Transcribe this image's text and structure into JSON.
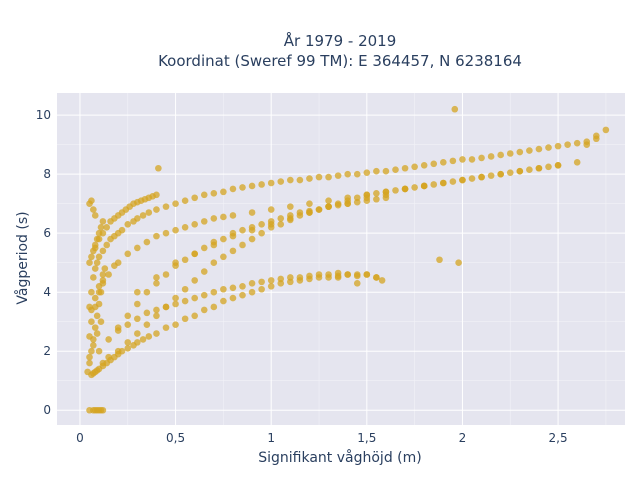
{
  "chart_data": {
    "type": "scatter",
    "title_lines": [
      "År 1979 - 2019",
      "Koordinat (Sweref 99 TM): E 364457, N 6238164"
    ],
    "xlabel": "Signifikant våghöjd (m)",
    "ylabel": "Vågperiod (s)",
    "xlim": [
      -0.12,
      2.85
    ],
    "ylim": [
      -0.5,
      10.75
    ],
    "xticks": [
      0,
      0.5,
      1,
      1.5,
      2,
      2.5
    ],
    "xtick_labels": [
      "0",
      "0,5",
      "1",
      "1,5",
      "2",
      "2,5"
    ],
    "yticks": [
      0,
      2,
      4,
      6,
      8,
      10
    ],
    "ytick_labels": [
      "0",
      "2",
      "4",
      "6",
      "8",
      "10"
    ],
    "grid": true,
    "marker_color": "#d4a421",
    "plot_background": "#e5e5ef",
    "series": [
      {
        "x": [
          0.05,
          0.07,
          0.09,
          0.11,
          0.12,
          0.08,
          0.1,
          0.06,
          0.07,
          0.08,
          0.09,
          0.1,
          0.12,
          0.14,
          0.16,
          0.18,
          0.2,
          0.22,
          0.25,
          0.28,
          0.3,
          0.33,
          0.36,
          0.4,
          0.45,
          0.5,
          0.55,
          0.6,
          0.65,
          0.7,
          0.75,
          0.8,
          0.85,
          0.9,
          0.95,
          1.0,
          1.05,
          1.1,
          1.15,
          1.2,
          1.25,
          1.3,
          1.35,
          1.4,
          1.45,
          1.5,
          0.05,
          0.06,
          0.07,
          0.08,
          0.09,
          0.1,
          0.12,
          0.14,
          0.16,
          0.18,
          0.2,
          0.22,
          0.25,
          0.28,
          0.3,
          0.33,
          0.36,
          0.4,
          0.45,
          0.5,
          0.55,
          0.6,
          0.65,
          0.7,
          0.75,
          0.8,
          0.85,
          0.9,
          0.95,
          1.0,
          1.05,
          1.1,
          1.15,
          1.2,
          1.25,
          1.3,
          1.35,
          1.4,
          1.45,
          1.5,
          1.55,
          1.6,
          1.65,
          1.7,
          1.75,
          1.8,
          1.85,
          1.9,
          1.95,
          2.0,
          2.05,
          2.1,
          2.15,
          2.2,
          2.25,
          2.3,
          2.35,
          2.4,
          2.45,
          2.5,
          2.55,
          2.6,
          2.65,
          2.7,
          0.05,
          0.06,
          0.08,
          0.1,
          0.12,
          0.15,
          0.18,
          0.2,
          0.25,
          0.3,
          0.35,
          0.4,
          0.45,
          0.5,
          0.55,
          0.6,
          0.65,
          0.7,
          0.75,
          0.8,
          0.9,
          1.0,
          1.1,
          1.2,
          1.3,
          1.4,
          1.5,
          1.6,
          1.7,
          1.8,
          0.04,
          0.05,
          0.06,
          0.07,
          0.08,
          0.09,
          0.1,
          0.11,
          0.12,
          0.13,
          0.05,
          0.06,
          0.07,
          0.08,
          0.09,
          0.1,
          0.11,
          0.12,
          0.05,
          0.07,
          0.09,
          0.11,
          0.06,
          0.08,
          0.1,
          0.12,
          0.3,
          0.4,
          0.5,
          0.6,
          0.7,
          0.8,
          0.9,
          1.0,
          1.1,
          1.2,
          1.3,
          1.4,
          1.5,
          1.6,
          1.7,
          1.8,
          1.9,
          2.0,
          2.1,
          2.2,
          2.3,
          2.4,
          2.5,
          2.6,
          0.2,
          0.25,
          0.3,
          0.35,
          0.4,
          0.45,
          0.5,
          0.55,
          0.6,
          0.65,
          0.7,
          0.75,
          0.8,
          0.85,
          0.9,
          0.95,
          1.0,
          1.05,
          1.1,
          1.15,
          1.2,
          1.25,
          1.3,
          1.35,
          1.4,
          1.45,
          1.5,
          1.55,
          0.1,
          0.15,
          0.2,
          0.25,
          0.3,
          0.35,
          0.4,
          0.45,
          0.5,
          0.55,
          0.6,
          0.65,
          0.7,
          0.75,
          0.8,
          0.85,
          0.9,
          0.95,
          1.0,
          1.05,
          1.1,
          1.15,
          1.2,
          1.25,
          1.3,
          1.35,
          1.4,
          1.45,
          1.5,
          1.55,
          1.6,
          0.08,
          0.1,
          0.12,
          0.14,
          0.16,
          0.18,
          0.2,
          0.22,
          0.24,
          0.26,
          0.28,
          0.3,
          0.32,
          0.34,
          0.36,
          0.38,
          0.4,
          1.96,
          2.75,
          2.7,
          2.65,
          1.98,
          1.88,
          1.45,
          1.35,
          1.55,
          1.58,
          0.41,
          0.06,
          0.07,
          0.08,
          0.05,
          0.12,
          0.15,
          0.2,
          0.25,
          0.3,
          0.35,
          0.4,
          0.45,
          0.5,
          0.55,
          0.6,
          0.65,
          0.7,
          0.75,
          0.8,
          0.85,
          0.9,
          0.95,
          1.0,
          1.05,
          1.1,
          1.15,
          1.2,
          1.25,
          1.3,
          1.35,
          1.4,
          1.45,
          1.5,
          1.55,
          1.6,
          1.65,
          1.7,
          1.75,
          1.8,
          1.85,
          1.9,
          1.95,
          2.0,
          2.05,
          2.1,
          2.15,
          2.2,
          2.25,
          2.3,
          2.35,
          2.4,
          2.45,
          2.5
        ],
        "y": [
          0,
          0,
          0,
          0,
          0,
          0,
          0,
          1.2,
          1.25,
          1.3,
          1.35,
          1.4,
          1.5,
          1.6,
          1.7,
          1.8,
          1.9,
          2.0,
          2.1,
          2.2,
          2.3,
          2.4,
          2.5,
          2.6,
          2.8,
          2.9,
          3.1,
          3.2,
          3.4,
          3.5,
          3.7,
          3.8,
          3.9,
          4.0,
          4.1,
          4.2,
          4.3,
          4.35,
          4.4,
          4.45,
          4.5,
          4.5,
          4.55,
          4.6,
          4.6,
          4.6,
          3.5,
          4.0,
          4.5,
          4.8,
          5.0,
          5.2,
          5.4,
          5.6,
          5.8,
          5.9,
          6.0,
          6.1,
          6.3,
          6.4,
          6.5,
          6.6,
          6.7,
          6.8,
          6.9,
          7.0,
          7.1,
          7.2,
          7.3,
          7.35,
          7.4,
          7.5,
          7.55,
          7.6,
          7.65,
          7.7,
          7.75,
          7.8,
          7.8,
          7.85,
          7.9,
          7.9,
          7.95,
          8.0,
          8.0,
          8.05,
          8.1,
          8.1,
          8.15,
          8.2,
          8.25,
          8.3,
          8.35,
          8.4,
          8.45,
          8.5,
          8.5,
          8.55,
          8.6,
          8.65,
          8.7,
          8.75,
          8.8,
          8.85,
          8.9,
          8.95,
          9.0,
          9.05,
          9.1,
          9.2,
          2.5,
          3.0,
          3.5,
          4.0,
          4.3,
          4.6,
          4.9,
          5.0,
          5.3,
          5.5,
          5.7,
          5.9,
          6.0,
          6.1,
          6.2,
          6.3,
          6.4,
          6.5,
          6.55,
          6.6,
          6.7,
          6.8,
          6.9,
          7.0,
          7.1,
          7.2,
          7.3,
          7.4,
          7.5,
          7.6,
          1.3,
          1.6,
          2.0,
          2.4,
          2.8,
          3.2,
          3.6,
          4.0,
          4.4,
          4.8,
          5.0,
          5.2,
          5.4,
          5.6,
          5.8,
          6.0,
          6.2,
          6.4,
          1.8,
          2.2,
          2.6,
          3.0,
          3.4,
          3.8,
          4.2,
          4.6,
          4.0,
          4.5,
          5.0,
          5.3,
          5.6,
          5.9,
          6.1,
          6.3,
          6.5,
          6.7,
          6.9,
          7.0,
          7.2,
          7.3,
          7.5,
          7.6,
          7.7,
          7.8,
          7.9,
          8.0,
          8.1,
          8.2,
          8.3,
          8.4,
          2.7,
          2.9,
          3.1,
          3.3,
          3.4,
          3.5,
          3.6,
          3.7,
          3.8,
          3.9,
          4.0,
          4.1,
          4.15,
          4.2,
          4.3,
          4.35,
          4.4,
          4.45,
          4.5,
          4.5,
          4.55,
          4.6,
          4.6,
          4.65,
          4.6,
          4.55,
          4.6,
          4.5,
          2.0,
          2.4,
          2.8,
          3.2,
          3.6,
          4.0,
          4.3,
          4.6,
          4.9,
          5.1,
          5.3,
          5.5,
          5.7,
          5.8,
          6.0,
          6.1,
          6.2,
          6.3,
          6.4,
          6.5,
          6.6,
          6.7,
          6.75,
          6.8,
          6.9,
          6.95,
          7.0,
          7.05,
          7.1,
          7.15,
          7.2,
          5.5,
          5.8,
          6.0,
          6.2,
          6.4,
          6.5,
          6.6,
          6.7,
          6.8,
          6.9,
          7.0,
          7.05,
          7.1,
          7.15,
          7.2,
          7.25,
          7.3,
          10.2,
          9.5,
          9.3,
          9.0,
          5.0,
          5.1,
          4.3,
          4.5,
          4.5,
          4.4,
          8.2,
          7.1,
          6.8,
          6.6,
          7.0,
          1.6,
          1.8,
          2.0,
          2.3,
          2.6,
          2.9,
          3.2,
          3.5,
          3.8,
          4.1,
          4.4,
          4.7,
          5.0,
          5.2,
          5.4,
          5.6,
          5.8,
          6.0,
          6.2,
          6.3,
          6.45,
          6.6,
          6.7,
          6.8,
          6.9,
          7.0,
          7.1,
          7.2,
          7.3,
          7.35,
          7.4,
          7.45,
          7.5,
          7.55,
          7.6,
          7.65,
          7.7,
          7.75,
          7.8,
          7.85,
          7.9,
          7.95,
          8.0,
          8.05,
          8.1,
          8.15,
          8.2,
          8.25,
          8.3
        ]
      }
    ]
  }
}
